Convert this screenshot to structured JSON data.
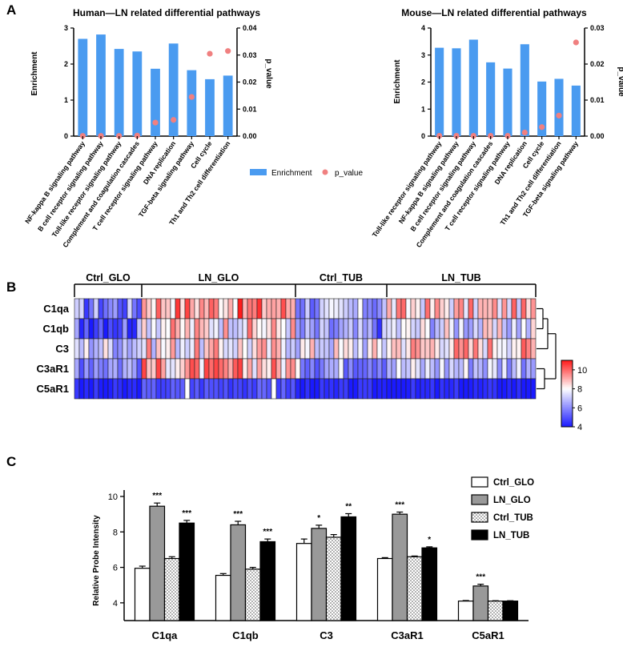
{
  "panels": {
    "a": "A",
    "b": "B",
    "c": "C"
  },
  "colors": {
    "enrich": "#4a9bf0",
    "pval": "#f08080",
    "hm_low": "#1a1aff",
    "hm_mid": "#ffffff",
    "hm_high": "#ff1a1a"
  },
  "chart_data": [
    {
      "id": "human",
      "type": "bar",
      "title": "Human—LN related differential pathways",
      "ylabel": "Enrichment",
      "y2label": "p_value",
      "ylim": [
        0,
        3
      ],
      "yticks": [
        "0",
        "1",
        "2",
        "3"
      ],
      "y2lim": [
        0,
        0.04
      ],
      "y2ticks": [
        "0.00",
        "0.01",
        "0.02",
        "0.03",
        "0.04"
      ],
      "categories": [
        "NF-kappa B signaling pathway",
        "B cell receptor signaling pathway",
        "Toll-like receptor signaling pathway",
        "Complement and coagulation cascades",
        "T cell receptor signaling pathway",
        "DNA replication",
        "TGF-beta signaling pathway",
        "Cell cycle",
        "Th1 and Th2 cell differentiation"
      ],
      "series": [
        {
          "name": "Enrichment",
          "axis": "left",
          "values": [
            2.7,
            2.82,
            2.42,
            2.35,
            1.87,
            2.57,
            1.83,
            1.58,
            1.68
          ]
        },
        {
          "name": "p_value",
          "axis": "right",
          "values": [
            0.0001,
            0.0001,
            0.0001,
            0.0002,
            0.005,
            0.006,
            0.0145,
            0.0305,
            0.0315
          ]
        }
      ]
    },
    {
      "id": "mouse",
      "type": "bar",
      "title": "Mouse—LN related differential pathways",
      "ylabel": "Enrichment",
      "y2label": "p_value",
      "ylim": [
        0,
        4
      ],
      "yticks": [
        "0",
        "1",
        "2",
        "3",
        "4"
      ],
      "y2lim": [
        0,
        0.03
      ],
      "y2ticks": [
        "0.00",
        "0.01",
        "0.02",
        "0.03"
      ],
      "categories": [
        "Toll-like receptor signaling pathway",
        "NF-kappa B signaling pathway",
        "B cell receptor signaling pathway",
        "Complement and coagulation cascades",
        "T cell receptor signaling pathway",
        "DNA replication",
        "Cell cycle",
        "Th1 and Th2 cell differentiation",
        "TGF-beta signaling pathway"
      ],
      "series": [
        {
          "name": "Enrichment",
          "axis": "left",
          "values": [
            3.27,
            3.25,
            3.57,
            2.73,
            2.5,
            3.4,
            2.02,
            2.12,
            1.87
          ]
        },
        {
          "name": "p_value",
          "axis": "right",
          "values": [
            0.0001,
            0.0001,
            0.0001,
            0.0001,
            0.0001,
            0.001,
            0.0025,
            0.0057,
            0.026
          ]
        }
      ]
    },
    {
      "id": "heatmap",
      "type": "heatmap",
      "groups": [
        {
          "name": "Ctrl_GLO",
          "n": 14
        },
        {
          "name": "LN_GLO",
          "n": 32
        },
        {
          "name": "Ctrl_TUB",
          "n": 19
        },
        {
          "name": "LN_TUB",
          "n": 31
        }
      ],
      "rows": [
        "C1qa",
        "C1qb",
        "C3",
        "C3aR1",
        "C5aR1"
      ],
      "scale": {
        "min": 4,
        "max": 11,
        "ticks": [
          "4",
          "6",
          "8",
          "10"
        ]
      },
      "row_means": {
        "C1qa": [
          5.9,
          9.4,
          6.5,
          8.5
        ],
        "C1qb": [
          5.5,
          8.4,
          5.9,
          7.4
        ],
        "C3": [
          7.3,
          8.2,
          7.7,
          8.8
        ],
        "C3aR1": [
          6.5,
          9.0,
          6.6,
          7.1
        ],
        "C5aR1": [
          4.1,
          4.9,
          4.1,
          4.1
        ]
      }
    },
    {
      "id": "bars",
      "type": "bar",
      "ylabel": "Relative Probe Intensity",
      "ylim": [
        3,
        10
      ],
      "yticks": [
        "4",
        "6",
        "8",
        "10"
      ],
      "categories": [
        "C1qa",
        "C1qb",
        "C3",
        "C3aR1",
        "C5aR1"
      ],
      "series": [
        {
          "name": "Ctrl_GLO",
          "values": [
            5.95,
            5.55,
            7.35,
            6.5,
            4.1
          ],
          "err": [
            0.12,
            0.1,
            0.25,
            0.05,
            0.03
          ]
        },
        {
          "name": "LN_GLO",
          "values": [
            9.45,
            8.4,
            8.2,
            9.0,
            4.95
          ],
          "err": [
            0.18,
            0.2,
            0.18,
            0.12,
            0.1
          ]
        },
        {
          "name": "Ctrl_TUB",
          "values": [
            6.5,
            5.9,
            7.7,
            6.6,
            4.1
          ],
          "err": [
            0.1,
            0.1,
            0.15,
            0.04,
            0.02
          ]
        },
        {
          "name": "LN_TUB",
          "values": [
            8.5,
            7.45,
            8.85,
            7.1,
            4.1
          ],
          "err": [
            0.15,
            0.15,
            0.18,
            0.06,
            0.02
          ]
        }
      ],
      "significance": {
        "LN_GLO": [
          "***",
          "***",
          "*",
          "***",
          "***"
        ],
        "LN_TUB": [
          "***",
          "***",
          "**",
          "*",
          ""
        ]
      }
    }
  ]
}
